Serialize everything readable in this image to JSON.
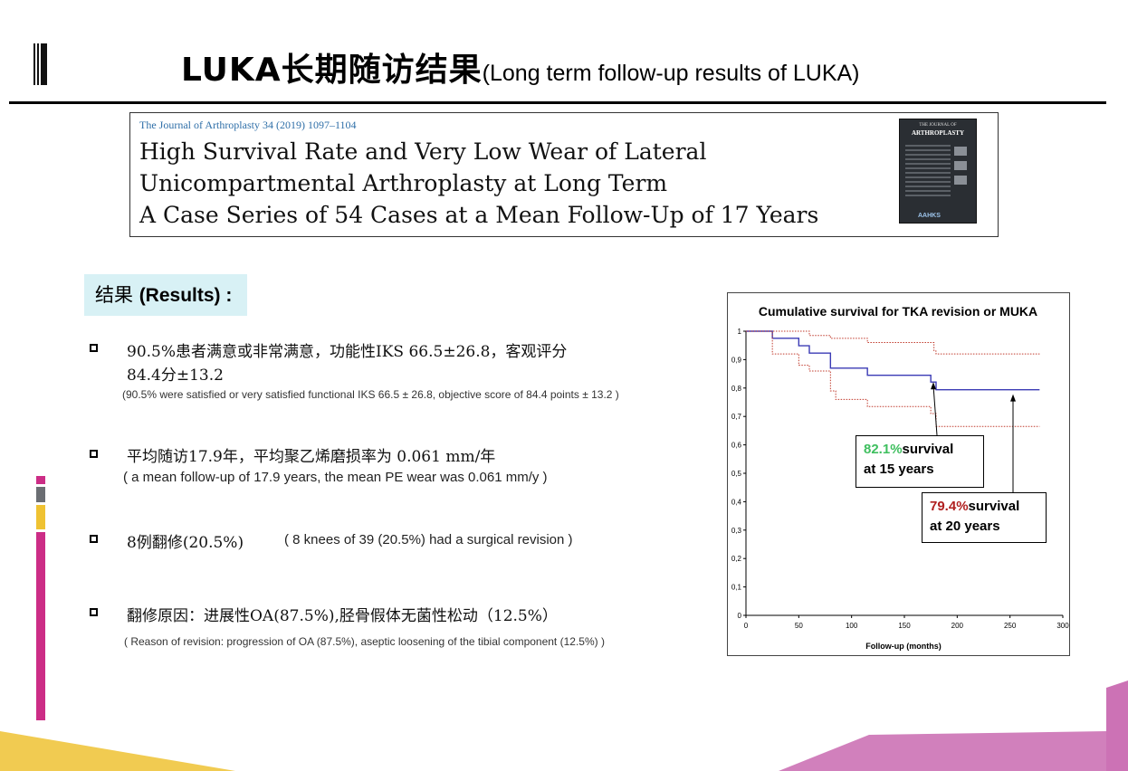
{
  "header": {
    "title_zh": "LUKA长期随访结果",
    "title_en": "(Long term follow-up results of LUKA)"
  },
  "paper": {
    "journal_ref": "The Journal of Arthroplasty 34 (2019) 1097–1104",
    "title_lines": [
      "High Survival Rate and Very Low Wear of Lateral",
      "Unicompartmental Arthroplasty at Long Term",
      "A Case Series of 54 Cases at a Mean Follow-Up of 17 Years"
    ],
    "cover": {
      "top_text": "THE JOURNAL OF",
      "journal_name": "ARTHROPLASTY",
      "publisher": "AAHKS"
    }
  },
  "results": {
    "label_zh": "结果",
    "label_en": "(Results) :",
    "items": [
      {
        "zh_lines": [
          "90.5%患者满意或非常满意，功能性IKS 66.5±26.8，客观评分",
          "84.4分±13.2"
        ],
        "en": "(90.5% were satisfied or very satisfied  functional IKS 66.5 ± 26.8, objective score    of 84.4 points ± 13.2 )"
      },
      {
        "zh_lines": [
          "平均随访17.9年，平均聚乙烯磨损率为 0.061 mm/年"
        ],
        "en": "( a mean follow-up of 17.9 years, the mean PE wear was 0.061 mm/y )"
      },
      {
        "zh_lines": [
          "8例翻修(20.5%)"
        ],
        "en": "( 8 knees of 39 (20.5%) had a surgical revision )"
      },
      {
        "zh_lines": [
          "翻修原因：进展性OA(87.5%),胫骨假体无菌性松动（12.5%）"
        ],
        "en": "( Reason of revision: progression of OA (87.5%), aseptic loosening of the tibial component (12.5%) )"
      }
    ]
  },
  "chart_data": {
    "type": "line",
    "title": "Cumulative survival for TKA revision or MUKA",
    "xlabel": "Follow-up (months)",
    "ylabel": "",
    "xlim": [
      0,
      300
    ],
    "ylim": [
      0,
      1
    ],
    "x_ticks": [
      "0",
      "50",
      "100",
      "150",
      "200",
      "250",
      "300"
    ],
    "y_ticks": [
      "0",
      "0,1",
      "0,2",
      "0,3",
      "0,4",
      "0,5",
      "0,6",
      "0,7",
      "0,8",
      "0,9",
      "1"
    ],
    "series": [
      {
        "style": "solid",
        "color": "#3b3bb5",
        "x": [
          0,
          25,
          25,
          50,
          50,
          60,
          60,
          80,
          80,
          115,
          115,
          175,
          175,
          180,
          180,
          278
        ],
        "y": [
          1,
          1,
          0.975,
          0.975,
          0.949,
          0.949,
          0.923,
          0.923,
          0.87,
          0.87,
          0.845,
          0.845,
          0.821,
          0.821,
          0.794,
          0.794
        ]
      },
      {
        "style": "dotted",
        "color": "#c0392b",
        "x": [
          0,
          60,
          60,
          80,
          80,
          115,
          115,
          178,
          178,
          180,
          180,
          278
        ],
        "y": [
          1,
          1,
          0.985,
          0.985,
          0.975,
          0.975,
          0.96,
          0.96,
          0.93,
          0.93,
          0.92,
          0.92
        ]
      },
      {
        "style": "dotted",
        "color": "#c0392b",
        "x": [
          0,
          25,
          25,
          50,
          50,
          60,
          60,
          80,
          80,
          85,
          85,
          115,
          115,
          175,
          175,
          180,
          180,
          278
        ],
        "y": [
          1,
          1,
          0.92,
          0.92,
          0.88,
          0.88,
          0.86,
          0.86,
          0.79,
          0.79,
          0.76,
          0.76,
          0.735,
          0.735,
          0.71,
          0.71,
          0.665,
          0.665
        ]
      }
    ],
    "annotations": [
      {
        "highlight": "82.1%",
        "text": "survival",
        "line2": "at 15 years",
        "color": "#3fbf5f",
        "x": 180,
        "y": 0.821
      },
      {
        "highlight": "79.4%",
        "text": "survival",
        "line2": "at 20 years",
        "color": "#b02020",
        "x": 240,
        "y": 0.794
      }
    ]
  },
  "colors": {
    "accent_magenta": "#cc2d86",
    "accent_gray": "#6b6e73",
    "accent_yellow": "#efc232",
    "results_bg": "#d8f1f5"
  }
}
